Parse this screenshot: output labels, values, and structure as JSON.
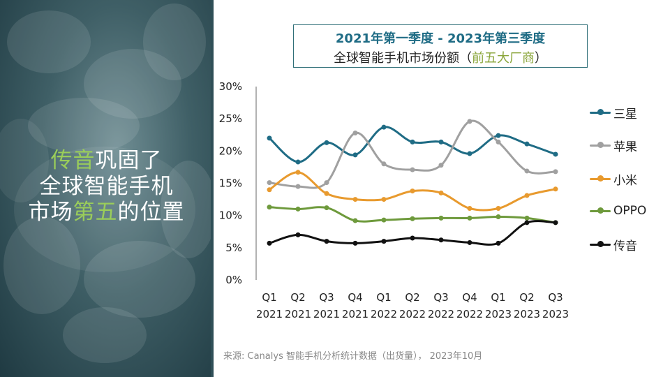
{
  "headline": {
    "line1_highlight": "传音",
    "line1_rest": "巩固了",
    "line2": "全球智能手机",
    "line3_a": "市场",
    "line3_highlight": "第五",
    "line3_b": "的位置"
  },
  "title": {
    "line1": "2021年第一季度 - 2023年第三季度",
    "line2_main": "全球智能手机市场份额（",
    "line2_accent": "前五大厂商",
    "line2_end": "）"
  },
  "source": "来源: Canalys 智能手机分析统计数据（出货量），  2023年10月",
  "colors": {
    "samsung": "#1f6c85",
    "apple": "#a0a0a0",
    "xiaomi": "#e89a2e",
    "oppo": "#6e9a3c",
    "transsion": "#111111",
    "title_blue": "#1f6c85",
    "highlight_green": "#9acd5a"
  },
  "chart_data": {
    "type": "line",
    "categories": [
      "Q1 2021",
      "Q2 2021",
      "Q3 2021",
      "Q4 2021",
      "Q1 2022",
      "Q2 2022",
      "Q3 2022",
      "Q4 2022",
      "Q1 2023",
      "Q2 2023",
      "Q3 2023"
    ],
    "x_ticks": [
      {
        "q": "Q1",
        "y": "2021"
      },
      {
        "q": "Q2",
        "y": "2021"
      },
      {
        "q": "Q3",
        "y": "2021"
      },
      {
        "q": "Q4",
        "y": "2021"
      },
      {
        "q": "Q1",
        "y": "2022"
      },
      {
        "q": "Q2",
        "y": "2022"
      },
      {
        "q": "Q3",
        "y": "2022"
      },
      {
        "q": "Q4",
        "y": "2022"
      },
      {
        "q": "Q1",
        "y": "2023"
      },
      {
        "q": "Q2",
        "y": "2023"
      },
      {
        "q": "Q3",
        "y": "2023"
      }
    ],
    "y_ticks": [
      "0%",
      "5%",
      "10%",
      "15%",
      "20%",
      "25%",
      "30%"
    ],
    "ylim": [
      0,
      30
    ],
    "legend_position": "right",
    "grid": false,
    "series": [
      {
        "name": "三星",
        "color": "#1f6c85",
        "values": [
          22,
          18.3,
          21.3,
          19.4,
          23.7,
          21.4,
          21.4,
          19.6,
          22.4,
          21.1,
          19.5
        ]
      },
      {
        "name": "苹果",
        "color": "#a0a0a0",
        "values": [
          15.1,
          14.5,
          15.1,
          22.8,
          18.0,
          17.1,
          17.8,
          24.6,
          21.4,
          16.9,
          16.8
        ]
      },
      {
        "name": "小米",
        "color": "#e89a2e",
        "values": [
          14.0,
          16.7,
          13.4,
          12.5,
          12.5,
          13.8,
          13.5,
          11.1,
          11.1,
          13.1,
          14.1
        ]
      },
      {
        "name": "OPPO",
        "color": "#6e9a3c",
        "values": [
          11.3,
          11.0,
          11.2,
          9.2,
          9.3,
          9.5,
          9.6,
          9.6,
          9.8,
          9.6,
          8.9
        ]
      },
      {
        "name": "传音",
        "color": "#111111",
        "values": [
          5.7,
          7.0,
          6.0,
          5.7,
          6.0,
          6.5,
          6.2,
          5.8,
          5.7,
          8.9,
          8.9
        ]
      }
    ]
  }
}
